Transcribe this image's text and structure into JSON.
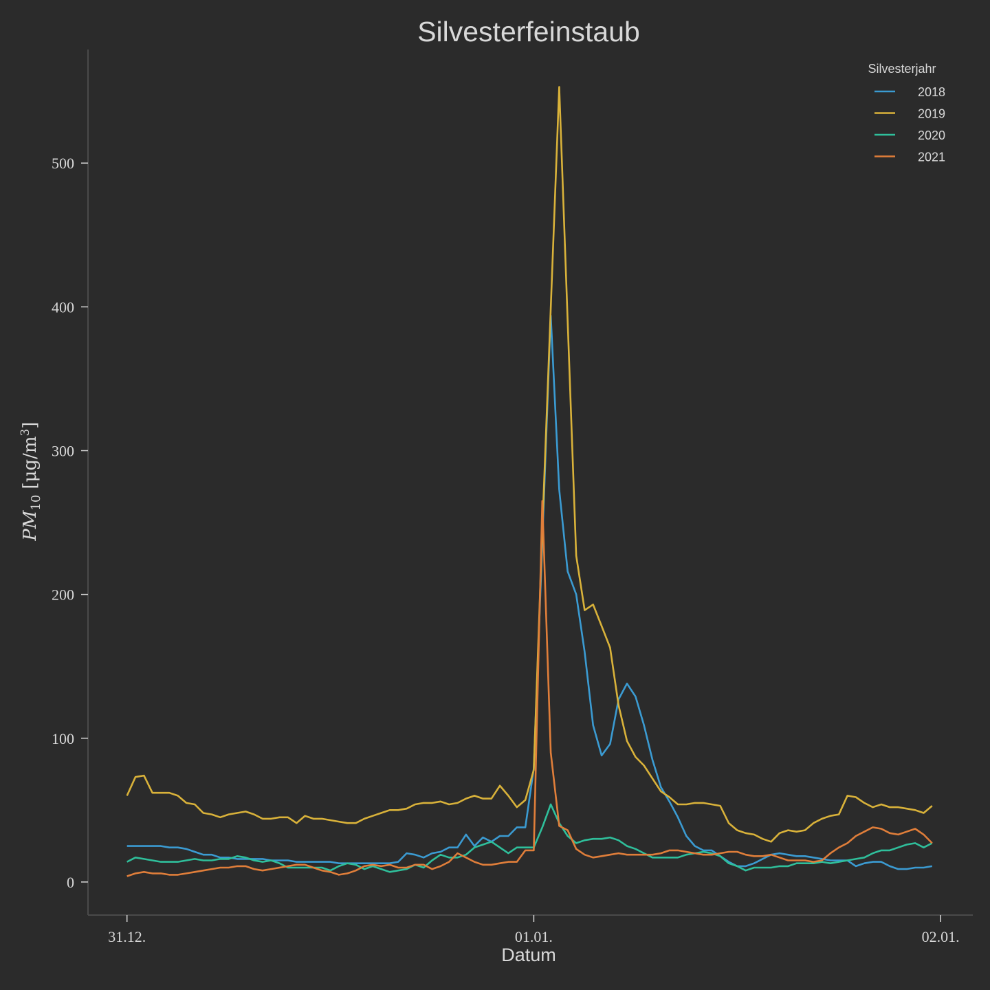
{
  "chart_data": {
    "type": "line",
    "title": "Silvesterfeinstaub",
    "xlabel": "Datum",
    "ylabel": {
      "base": "PM",
      "subscript": "10",
      "unit_open": "[μg/m",
      "superscript": "3",
      "unit_close": "]"
    },
    "ylim": [
      -23,
      579
    ],
    "xlim": [
      "30.12. 21:42",
      "02.01. 01:54"
    ],
    "y_ticks": [
      0,
      100,
      200,
      300,
      400,
      500
    ],
    "x_ticks": [
      {
        "label": "31.12.",
        "at": "31.12. 00:00"
      },
      {
        "label": "01.01.",
        "at": "01.01. 00:00"
      },
      {
        "label": "02.01.",
        "at": "02.01. 00:00"
      }
    ],
    "grid": false,
    "background": "#2b2b2b",
    "legend": {
      "title": "Silvesterjahr",
      "placement": "top-right"
    },
    "x": [
      "31.12. 00:00",
      "31.12. 00:30",
      "31.12. 01:00",
      "31.12. 01:30",
      "31.12. 02:00",
      "31.12. 02:30",
      "31.12. 03:00",
      "31.12. 03:30",
      "31.12. 04:00",
      "31.12. 04:30",
      "31.12. 05:00",
      "31.12. 05:30",
      "31.12. 06:00",
      "31.12. 06:30",
      "31.12. 07:00",
      "31.12. 07:30",
      "31.12. 08:00",
      "31.12. 08:30",
      "31.12. 09:00",
      "31.12. 09:30",
      "31.12. 10:00",
      "31.12. 10:30",
      "31.12. 11:00",
      "31.12. 11:30",
      "31.12. 12:00",
      "31.12. 12:30",
      "31.12. 13:00",
      "31.12. 13:30",
      "31.12. 14:00",
      "31.12. 14:30",
      "31.12. 15:00",
      "31.12. 15:30",
      "31.12. 16:00",
      "31.12. 16:30",
      "31.12. 17:00",
      "31.12. 17:30",
      "31.12. 18:00",
      "31.12. 18:30",
      "31.12. 19:00",
      "31.12. 19:30",
      "31.12. 20:00",
      "31.12. 20:30",
      "31.12. 21:00",
      "31.12. 21:30",
      "31.12. 22:00",
      "31.12. 22:30",
      "31.12. 23:00",
      "31.12. 23:30",
      "01.01. 00:00",
      "01.01. 00:30",
      "01.01. 01:00",
      "01.01. 01:30",
      "01.01. 02:00",
      "01.01. 02:30",
      "01.01. 03:00",
      "01.01. 03:30",
      "01.01. 04:00",
      "01.01. 04:30",
      "01.01. 05:00",
      "01.01. 05:30",
      "01.01. 06:00",
      "01.01. 06:30",
      "01.01. 07:00",
      "01.01. 07:30",
      "01.01. 08:00",
      "01.01. 08:30",
      "01.01. 09:00",
      "01.01. 09:30",
      "01.01. 10:00",
      "01.01. 10:30",
      "01.01. 11:00",
      "01.01. 11:30",
      "01.01. 12:00",
      "01.01. 12:30",
      "01.01. 13:00",
      "01.01. 13:30",
      "01.01. 14:00",
      "01.01. 14:30",
      "01.01. 15:00",
      "01.01. 15:30",
      "01.01. 16:00",
      "01.01. 16:30",
      "01.01. 17:00",
      "01.01. 17:30",
      "01.01. 18:00",
      "01.01. 18:30",
      "01.01. 19:00",
      "01.01. 19:30",
      "01.01. 20:00",
      "01.01. 20:30",
      "01.01. 21:00",
      "01.01. 21:30",
      "01.01. 22:00",
      "01.01. 22:30",
      "01.01. 23:00",
      "01.01. 23:30"
    ],
    "series": [
      {
        "name": "2018",
        "color": "#3b9bd2",
        "values": [
          25,
          25,
          25,
          25,
          25,
          24,
          24,
          23,
          21,
          19,
          19,
          17,
          17,
          16,
          16,
          16,
          16,
          15,
          15,
          15,
          14,
          14,
          14,
          14,
          14,
          13,
          13,
          13,
          13,
          13,
          13,
          13,
          14,
          20,
          19,
          17,
          20,
          21,
          24,
          24,
          33,
          25,
          31,
          28,
          32,
          32,
          38,
          38,
          79,
          236,
          394,
          273,
          216,
          200,
          160,
          109,
          88,
          96,
          127,
          138,
          129,
          109,
          85,
          66,
          56,
          45,
          32,
          25,
          22,
          22,
          18,
          14,
          11,
          11,
          13,
          16,
          19,
          20,
          19,
          18,
          18,
          17,
          16,
          15,
          15,
          15,
          11,
          13,
          14,
          14,
          11,
          9,
          9,
          10,
          10,
          11
        ]
      },
      {
        "name": "2019",
        "color": "#d9b23a",
        "values": [
          60,
          73,
          74,
          62,
          62,
          62,
          60,
          55,
          54,
          48,
          47,
          45,
          47,
          48,
          49,
          47,
          44,
          44,
          45,
          45,
          41,
          46,
          44,
          44,
          43,
          42,
          41,
          41,
          44,
          46,
          48,
          50,
          50,
          51,
          54,
          55,
          55,
          56,
          54,
          55,
          58,
          60,
          58,
          58,
          67,
          60,
          52,
          57,
          78,
          245,
          399,
          553,
          390,
          227,
          189,
          193,
          178,
          163,
          123,
          98,
          87,
          81,
          72,
          63,
          59,
          54,
          54,
          55,
          55,
          54,
          53,
          41,
          36,
          34,
          33,
          30,
          28,
          34,
          36,
          35,
          36,
          41,
          44,
          46,
          47,
          60,
          59,
          55,
          52,
          54,
          52,
          52,
          51,
          50,
          48,
          53
        ]
      },
      {
        "name": "2020",
        "color": "#2fbf9b",
        "values": [
          14,
          17,
          16,
          15,
          14,
          14,
          14,
          15,
          16,
          15,
          15,
          16,
          16,
          18,
          17,
          15,
          14,
          15,
          13,
          10,
          10,
          10,
          10,
          10,
          8,
          11,
          13,
          12,
          9,
          11,
          9,
          7,
          8,
          9,
          12,
          10,
          15,
          19,
          17,
          17,
          19,
          24,
          26,
          28,
          24,
          20,
          24,
          24,
          24,
          38,
          54,
          41,
          32,
          27,
          29,
          30,
          30,
          31,
          29,
          25,
          23,
          20,
          17,
          17,
          17,
          17,
          19,
          20,
          21,
          20,
          18,
          13,
          11,
          8,
          10,
          10,
          10,
          11,
          11,
          13,
          13,
          13,
          14,
          13,
          14,
          15,
          16,
          17,
          20,
          22,
          22,
          24,
          26,
          27,
          24,
          27
        ]
      },
      {
        "name": "2021",
        "color": "#e07e3a",
        "values": [
          4,
          6,
          7,
          6,
          6,
          5,
          5,
          6,
          7,
          8,
          9,
          10,
          10,
          11,
          11,
          9,
          8,
          9,
          10,
          11,
          12,
          12,
          10,
          8,
          7,
          5,
          6,
          8,
          11,
          12,
          11,
          12,
          10,
          10,
          12,
          12,
          9,
          11,
          14,
          20,
          17,
          14,
          12,
          12,
          13,
          14,
          14,
          22,
          22,
          265,
          90,
          39,
          36,
          23,
          19,
          17,
          18,
          19,
          20,
          19,
          19,
          19,
          19,
          20,
          22,
          22,
          21,
          20,
          19,
          19,
          20,
          21,
          21,
          19,
          18,
          18,
          19,
          17,
          15,
          15,
          15,
          14,
          15,
          20,
          24,
          27,
          32,
          35,
          38,
          37,
          34,
          33,
          35,
          37,
          33,
          27
        ]
      }
    ]
  }
}
